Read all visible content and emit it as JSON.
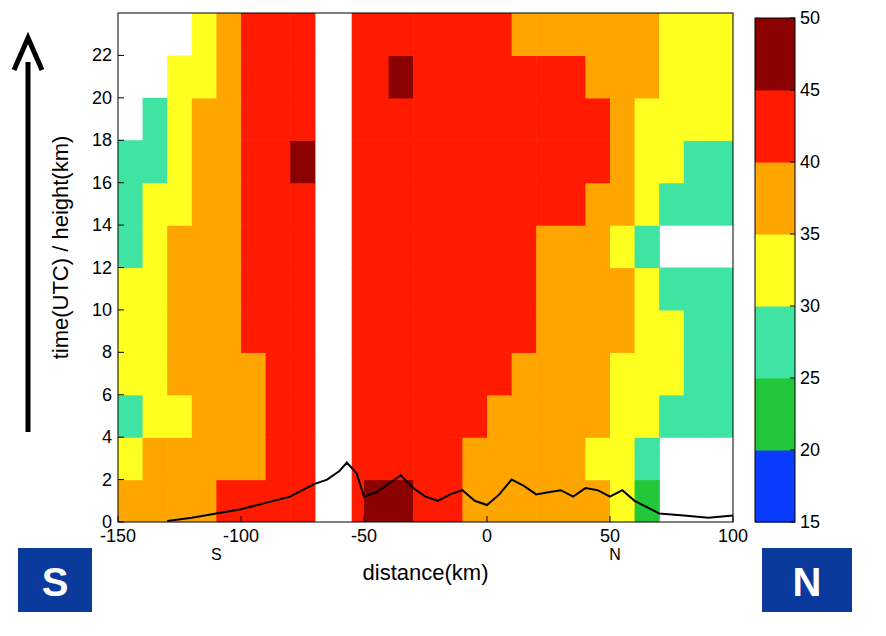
{
  "chart_data": {
    "type": "heatmap",
    "xlabel": "distance(km)",
    "ylabel": "time(UTC) / height(km)",
    "xlim": [
      -150,
      100
    ],
    "xticks": [
      -150,
      -100,
      -50,
      0,
      50,
      100
    ],
    "ylim": [
      0,
      24
    ],
    "yticks": [
      0,
      2,
      4,
      6,
      8,
      10,
      12,
      14,
      16,
      18,
      20,
      22
    ],
    "x_edges": [
      -150,
      -140,
      -130,
      -120,
      -110,
      -100,
      -90,
      -80,
      -70,
      -55,
      -50,
      -40,
      -30,
      -20,
      -10,
      0,
      10,
      20,
      30,
      40,
      50,
      60,
      70,
      80,
      90,
      100
    ],
    "y_edges": [
      0,
      2,
      4,
      6,
      8,
      10,
      12,
      14,
      16,
      18,
      20,
      22,
      24
    ],
    "cells": [
      [
        37,
        37,
        37,
        37,
        40,
        40,
        40,
        40,
        null,
        42,
        46,
        46,
        42,
        40,
        38,
        38,
        37,
        37,
        37,
        37,
        32,
        22,
        null,
        null,
        null
      ],
      [
        33,
        35,
        37,
        35,
        37,
        38,
        40,
        43,
        null,
        43,
        42,
        42,
        40,
        40,
        37,
        37,
        37,
        35,
        35,
        33,
        30,
        25,
        null,
        null,
        null
      ],
      [
        28,
        30,
        33,
        35,
        37,
        38,
        40,
        43,
        null,
        42,
        44,
        44,
        42,
        40,
        40,
        38,
        37,
        37,
        36,
        36,
        33,
        30,
        27,
        25,
        27
      ],
      [
        30,
        32,
        35,
        37,
        37,
        38,
        40,
        43,
        null,
        42,
        43,
        42,
        42,
        40,
        42,
        40,
        38,
        38,
        37,
        37,
        33,
        30,
        30,
        28,
        27
      ],
      [
        32,
        33,
        35,
        37,
        38,
        40,
        41,
        43,
        null,
        42,
        43,
        43,
        42,
        42,
        42,
        40,
        40,
        38,
        37,
        38,
        36,
        33,
        30,
        28,
        27
      ],
      [
        30,
        33,
        36,
        38,
        38,
        40,
        41,
        42,
        null,
        42,
        43,
        44,
        42,
        42,
        41,
        40,
        40,
        38,
        37,
        38,
        35,
        30,
        28,
        26,
        25
      ],
      [
        28,
        32,
        36,
        37,
        38,
        40,
        42,
        42,
        null,
        42,
        43,
        43,
        42,
        41,
        40,
        40,
        40,
        38,
        37,
        37,
        33,
        25,
        null,
        null,
        null
      ],
      [
        27,
        30,
        33,
        35,
        37,
        40,
        42,
        43,
        null,
        43,
        44,
        43,
        42,
        41,
        40,
        40,
        41,
        40,
        40,
        38,
        35,
        30,
        27,
        27,
        25
      ],
      [
        25,
        28,
        32,
        35,
        37,
        40,
        43,
        45,
        null,
        42,
        43,
        42,
        42,
        40,
        40,
        40,
        40,
        42,
        43,
        40,
        37,
        33,
        30,
        28,
        27
      ],
      [
        null,
        27,
        32,
        35,
        38,
        41,
        43,
        42,
        null,
        42,
        43,
        44,
        42,
        41,
        41,
        40,
        41,
        43,
        42,
        40,
        37,
        33,
        31,
        30,
        30
      ],
      [
        null,
        null,
        30,
        33,
        37,
        41,
        43,
        43,
        null,
        43,
        44,
        45,
        43,
        42,
        42,
        41,
        40,
        40,
        40,
        38,
        37,
        35,
        33,
        33,
        33
      ],
      [
        null,
        null,
        null,
        33,
        37,
        40,
        42,
        42,
        null,
        43,
        44,
        43,
        42,
        40,
        40,
        40,
        38,
        38,
        38,
        37,
        36,
        35,
        33,
        33,
        33
      ]
    ],
    "colorbar": {
      "zlim": [
        15,
        50
      ],
      "ticks": [
        15,
        20,
        25,
        30,
        35,
        40,
        45,
        50
      ],
      "colors": [
        "#0a3cff",
        "#22c83a",
        "#3fe3a2",
        "#ffff20",
        "#ffa500",
        "#ff1a00",
        "#8b0000"
      ]
    },
    "series": [
      {
        "type": "line",
        "color": "#000000",
        "x": [
          -130,
          -120,
          -110,
          -100,
          -90,
          -80,
          -75,
          -70,
          -65,
          -60,
          -57,
          -53,
          -50,
          -45,
          -40,
          -35,
          -30,
          -25,
          -20,
          -15,
          -10,
          -5,
          0,
          5,
          10,
          15,
          20,
          25,
          30,
          35,
          40,
          45,
          50,
          55,
          60,
          65,
          70,
          80,
          90,
          100
        ],
        "values": [
          0.05,
          0.2,
          0.4,
          0.6,
          0.9,
          1.2,
          1.5,
          1.8,
          2.0,
          2.4,
          2.8,
          2.3,
          1.2,
          1.4,
          1.8,
          2.2,
          1.6,
          1.2,
          1.0,
          1.3,
          1.5,
          1.0,
          0.8,
          1.3,
          2.0,
          1.7,
          1.3,
          1.4,
          1.5,
          1.2,
          1.6,
          1.5,
          1.2,
          1.5,
          1.0,
          0.7,
          0.4,
          0.3,
          0.2,
          0.3
        ]
      }
    ],
    "annotations": [
      {
        "text": "S",
        "x": -110
      },
      {
        "text": "N",
        "x": 52
      }
    ],
    "corner_labels": [
      "S",
      "N"
    ]
  }
}
